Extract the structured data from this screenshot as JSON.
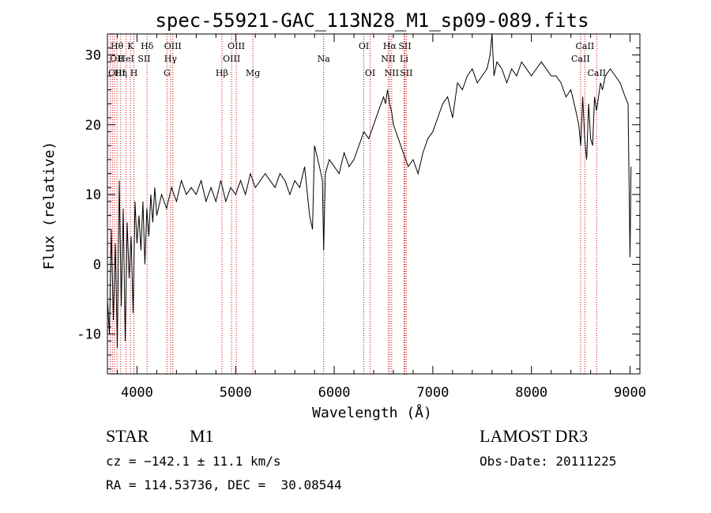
{
  "chart_data": {
    "type": "line",
    "title": "spec-55921-GAC_113N28_M1_sp09-089.fits",
    "xlabel": "Wavelength (Å)",
    "ylabel": "Flux (relative)",
    "xlim": [
      3700,
      9100
    ],
    "ylim": [
      -15.7,
      33.0
    ],
    "x_ticks": [
      4000,
      5000,
      6000,
      7000,
      8000,
      9000
    ],
    "y_ticks": [
      -10,
      0,
      10,
      20,
      30
    ],
    "grid": false,
    "series": [
      {
        "name": "flux",
        "x": [
          3700,
          3720,
          3740,
          3760,
          3780,
          3800,
          3820,
          3840,
          3860,
          3880,
          3900,
          3920,
          3940,
          3960,
          3980,
          4000,
          4020,
          4040,
          4060,
          4080,
          4100,
          4120,
          4140,
          4160,
          4180,
          4200,
          4250,
          4300,
          4350,
          4400,
          4450,
          4500,
          4550,
          4600,
          4650,
          4700,
          4750,
          4800,
          4850,
          4900,
          4950,
          5000,
          5050,
          5100,
          5150,
          5200,
          5250,
          5300,
          5350,
          5400,
          5450,
          5500,
          5550,
          5600,
          5650,
          5700,
          5750,
          5780,
          5800,
          5850,
          5880,
          5893,
          5910,
          5950,
          6000,
          6050,
          6100,
          6150,
          6200,
          6250,
          6300,
          6350,
          6400,
          6450,
          6500,
          6520,
          6540,
          6563,
          6580,
          6600,
          6650,
          6700,
          6750,
          6800,
          6850,
          6900,
          6950,
          7000,
          7050,
          7100,
          7150,
          7200,
          7250,
          7300,
          7350,
          7400,
          7450,
          7500,
          7550,
          7580,
          7600,
          7620,
          7650,
          7700,
          7750,
          7800,
          7850,
          7900,
          7950,
          8000,
          8050,
          8100,
          8150,
          8200,
          8250,
          8300,
          8350,
          8400,
          8450,
          8480,
          8500,
          8520,
          8540,
          8560,
          8580,
          8600,
          8620,
          8640,
          8660,
          8680,
          8700,
          8720,
          8750,
          8800,
          8850,
          8900,
          8950,
          8980,
          9000,
          9010
        ],
        "y": [
          -5,
          -10,
          5,
          -8,
          3,
          -12,
          12,
          -6,
          8,
          -11,
          6,
          -2,
          4,
          -7,
          9,
          3,
          7,
          2,
          9,
          0,
          8,
          4,
          10,
          6,
          11,
          7,
          10,
          8,
          11,
          9,
          12,
          10,
          11,
          10,
          12,
          9,
          11,
          9,
          12,
          9,
          11,
          10,
          12,
          10,
          13,
          11,
          12,
          13,
          12,
          11,
          13,
          12,
          10,
          12,
          11,
          14,
          7,
          5,
          17,
          14,
          12,
          2,
          13,
          15,
          14,
          13,
          16,
          14,
          15,
          17,
          19,
          18,
          20,
          22,
          24,
          23,
          25,
          23,
          22,
          20,
          18,
          16,
          14,
          15,
          13,
          16,
          18,
          19,
          21,
          23,
          24,
          21,
          26,
          25,
          27,
          28,
          26,
          27,
          28,
          30,
          33,
          27,
          29,
          28,
          26,
          28,
          27,
          29,
          28,
          27,
          28,
          29,
          28,
          27,
          27,
          26,
          24,
          25,
          22,
          20,
          17,
          24,
          18,
          15,
          23,
          18,
          17,
          24,
          22,
          24,
          26,
          25,
          27,
          28,
          27,
          26,
          24,
          23,
          1,
          14
        ]
      }
    ],
    "annotations": {
      "line_labels": [
        {
          "label": "Hθ",
          "wavelength": 3797,
          "row": 1
        },
        {
          "label": "K",
          "wavelength": 3934,
          "row": 1
        },
        {
          "label": "Hδ",
          "wavelength": 4102,
          "row": 1
        },
        {
          "label": "OIII",
          "wavelength": 4363,
          "row": 1
        },
        {
          "label": "OIII",
          "wavelength": 5007,
          "row": 1
        },
        {
          "label": "OI",
          "wavelength": 6300,
          "row": 1
        },
        {
          "label": "Hα",
          "wavelength": 6563,
          "row": 1
        },
        {
          "label": "SII",
          "wavelength": 6716,
          "row": 1
        },
        {
          "label": "CaII",
          "wavelength": 8542,
          "row": 1
        },
        {
          "label": "OII",
          "wavelength": 3727,
          "row": 2
        },
        {
          "label": "HeI",
          "wavelength": 3889,
          "row": 2
        },
        {
          "label": "SII",
          "wavelength": 4072,
          "row": 2
        },
        {
          "label": "Hγ",
          "wavelength": 4340,
          "row": 2
        },
        {
          "label": "OIII",
          "wavelength": 4959,
          "row": 2
        },
        {
          "label": "Na",
          "wavelength": 5893,
          "row": 2
        },
        {
          "label": "NII",
          "wavelength": 6548,
          "row": 2
        },
        {
          "label": "Li",
          "wavelength": 6708,
          "row": 2
        },
        {
          "label": "CaII",
          "wavelength": 8498,
          "row": 2
        },
        {
          "label": "OIII",
          "wavelength": 3727,
          "row": 3
        },
        {
          "label": "Hη",
          "wavelength": 3835,
          "row": 3
        },
        {
          "label": "H",
          "wavelength": 3969,
          "row": 3
        },
        {
          "label": "G",
          "wavelength": 4304,
          "row": 3
        },
        {
          "label": "Hβ",
          "wavelength": 4861,
          "row": 3
        },
        {
          "label": "Mg",
          "wavelength": 5175,
          "row": 3
        },
        {
          "label": "OI",
          "wavelength": 6364,
          "row": 3
        },
        {
          "label": "NII",
          "wavelength": 6583,
          "row": 3
        },
        {
          "label": "SII",
          "wavelength": 6731,
          "row": 3
        },
        {
          "label": "CaII",
          "wavelength": 8662,
          "row": 3
        }
      ],
      "marker_lines": [
        3727,
        3750,
        3771,
        3797,
        3835,
        3889,
        3934,
        3969,
        4102,
        4304,
        4340,
        4363,
        4861,
        4959,
        5007,
        5175,
        5893,
        6300,
        6364,
        6548,
        6563,
        6583,
        6708,
        6716,
        6731,
        8498,
        8542,
        8662
      ]
    },
    "line_color": "#000000",
    "marker_color": "#cc0000"
  },
  "info": {
    "class": "STAR",
    "subclass": "M1",
    "survey": "LAMOST DR3",
    "cz": "cz = −142.1 ± 11.1 km/s",
    "obs_date": "Obs-Date: 20111225",
    "coords": "RA = 114.53736, DEC =  30.08544"
  }
}
